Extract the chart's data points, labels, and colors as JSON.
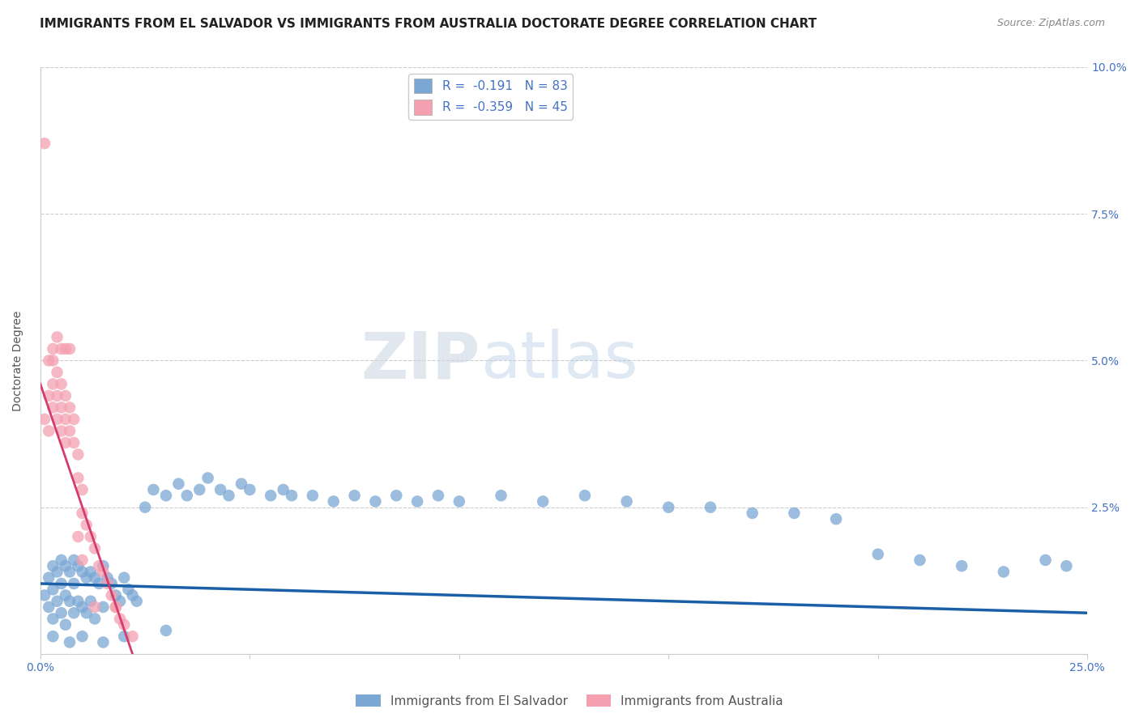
{
  "title": "IMMIGRANTS FROM EL SALVADOR VS IMMIGRANTS FROM AUSTRALIA DOCTORATE DEGREE CORRELATION CHART",
  "source": "Source: ZipAtlas.com",
  "ylabel": "Doctorate Degree",
  "legend_label_blue": "Immigrants from El Salvador",
  "legend_label_pink": "Immigrants from Australia",
  "r_blue": -0.191,
  "n_blue": 83,
  "r_pink": -0.359,
  "n_pink": 45,
  "xlim": [
    0.0,
    0.25
  ],
  "ylim": [
    0.0,
    0.1
  ],
  "xticks": [
    0.0,
    0.05,
    0.1,
    0.15,
    0.2,
    0.25
  ],
  "yticks": [
    0.0,
    0.025,
    0.05,
    0.075,
    0.1
  ],
  "ytick_labels": [
    "",
    "2.5%",
    "5.0%",
    "7.5%",
    "10.0%"
  ],
  "xtick_labels": [
    "0.0%",
    "",
    "",
    "",
    "",
    "25.0%"
  ],
  "color_blue": "#7ba7d4",
  "color_pink": "#f4a0b0",
  "line_color_blue": "#1a5fa8",
  "line_color_pink": "#d63b6e",
  "background_color": "#ffffff",
  "axis_color": "#4472c4",
  "title_fontsize": 11,
  "label_fontsize": 10,
  "tick_fontsize": 10,
  "blue_scatter_x": [
    0.001,
    0.002,
    0.002,
    0.003,
    0.003,
    0.003,
    0.004,
    0.004,
    0.005,
    0.005,
    0.005,
    0.006,
    0.006,
    0.006,
    0.007,
    0.007,
    0.008,
    0.008,
    0.008,
    0.009,
    0.009,
    0.01,
    0.01,
    0.011,
    0.011,
    0.012,
    0.012,
    0.013,
    0.013,
    0.014,
    0.015,
    0.015,
    0.016,
    0.017,
    0.018,
    0.019,
    0.02,
    0.021,
    0.022,
    0.023,
    0.025,
    0.027,
    0.03,
    0.033,
    0.035,
    0.038,
    0.04,
    0.043,
    0.045,
    0.048,
    0.05,
    0.055,
    0.058,
    0.06,
    0.065,
    0.07,
    0.075,
    0.08,
    0.085,
    0.09,
    0.095,
    0.1,
    0.11,
    0.12,
    0.13,
    0.14,
    0.15,
    0.16,
    0.17,
    0.18,
    0.19,
    0.2,
    0.21,
    0.22,
    0.23,
    0.24,
    0.245,
    0.003,
    0.007,
    0.01,
    0.015,
    0.02,
    0.03
  ],
  "blue_scatter_y": [
    0.01,
    0.013,
    0.008,
    0.015,
    0.011,
    0.006,
    0.014,
    0.009,
    0.016,
    0.012,
    0.007,
    0.015,
    0.01,
    0.005,
    0.014,
    0.009,
    0.016,
    0.012,
    0.007,
    0.015,
    0.009,
    0.014,
    0.008,
    0.013,
    0.007,
    0.014,
    0.009,
    0.013,
    0.006,
    0.012,
    0.015,
    0.008,
    0.013,
    0.012,
    0.01,
    0.009,
    0.013,
    0.011,
    0.01,
    0.009,
    0.025,
    0.028,
    0.027,
    0.029,
    0.027,
    0.028,
    0.03,
    0.028,
    0.027,
    0.029,
    0.028,
    0.027,
    0.028,
    0.027,
    0.027,
    0.026,
    0.027,
    0.026,
    0.027,
    0.026,
    0.027,
    0.026,
    0.027,
    0.026,
    0.027,
    0.026,
    0.025,
    0.025,
    0.024,
    0.024,
    0.023,
    0.017,
    0.016,
    0.015,
    0.014,
    0.016,
    0.015,
    0.003,
    0.002,
    0.003,
    0.002,
    0.003,
    0.004
  ],
  "pink_scatter_x": [
    0.001,
    0.001,
    0.002,
    0.002,
    0.002,
    0.003,
    0.003,
    0.003,
    0.004,
    0.004,
    0.004,
    0.005,
    0.005,
    0.005,
    0.006,
    0.006,
    0.006,
    0.007,
    0.007,
    0.008,
    0.008,
    0.009,
    0.009,
    0.01,
    0.01,
    0.011,
    0.012,
    0.013,
    0.014,
    0.015,
    0.016,
    0.017,
    0.018,
    0.019,
    0.02,
    0.022,
    0.003,
    0.004,
    0.005,
    0.006,
    0.007,
    0.009,
    0.01,
    0.013,
    0.018
  ],
  "pink_scatter_y": [
    0.087,
    0.04,
    0.044,
    0.038,
    0.05,
    0.05,
    0.046,
    0.042,
    0.048,
    0.044,
    0.04,
    0.046,
    0.042,
    0.038,
    0.044,
    0.04,
    0.036,
    0.042,
    0.038,
    0.04,
    0.036,
    0.034,
    0.03,
    0.028,
    0.024,
    0.022,
    0.02,
    0.018,
    0.015,
    0.014,
    0.012,
    0.01,
    0.008,
    0.006,
    0.005,
    0.003,
    0.052,
    0.054,
    0.052,
    0.052,
    0.052,
    0.02,
    0.016,
    0.008,
    0.008
  ]
}
